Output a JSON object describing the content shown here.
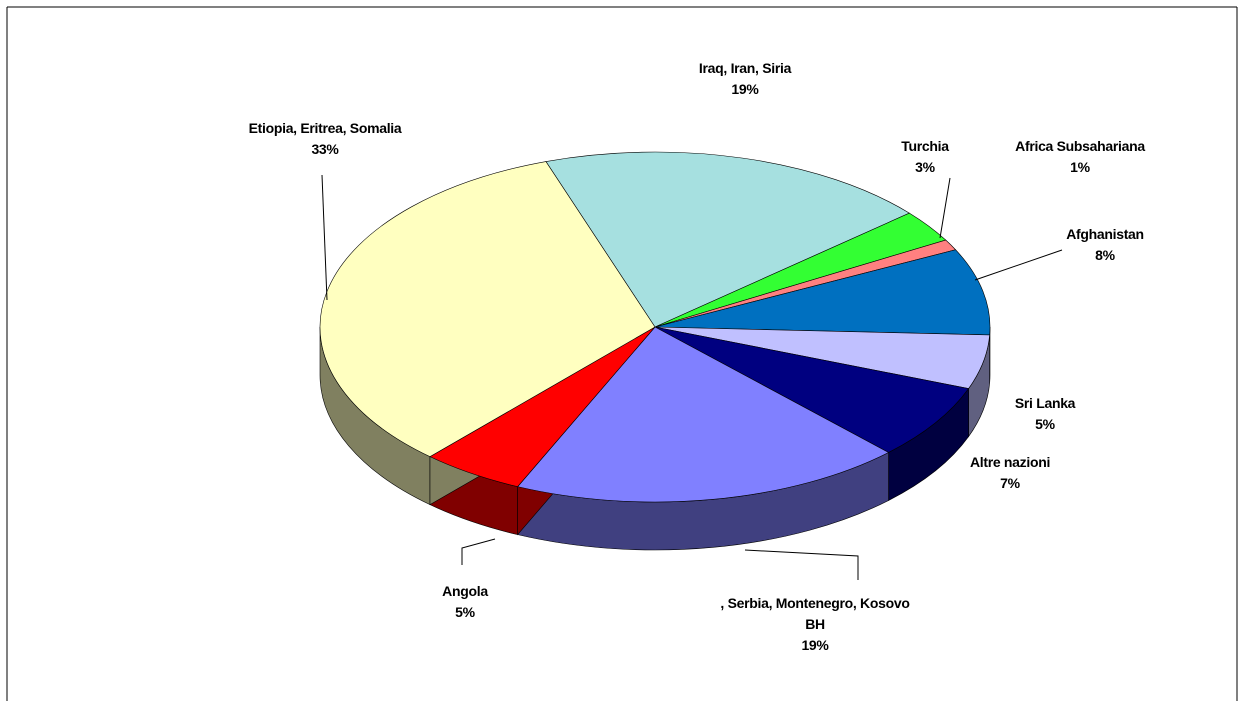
{
  "chart_data": {
    "type": "pie3d",
    "categories": [
      "Iraq, Iran, Siria",
      "Turchia",
      "Africa Subsahariana",
      "Afghanistan",
      "Sri Lanka",
      "Altre nazioni",
      ", Serbia,  Montenegro, Kosovo\nBH",
      "Angola",
      "Etiopia, Eritrea, Somalia"
    ],
    "values": [
      19,
      3,
      1,
      8,
      5,
      7,
      19,
      5,
      33
    ],
    "value_labels": [
      "19%",
      "3%",
      "1%",
      "8%",
      "5%",
      "7%",
      "19%",
      "5%",
      "33%"
    ],
    "colors": [
      "#a6e0e0",
      "#33ff33",
      "#ff8080",
      "#0070c0",
      "#c0c0ff",
      "#000080",
      "#8080ff",
      "#ff0000",
      "#ffffc0"
    ]
  }
}
